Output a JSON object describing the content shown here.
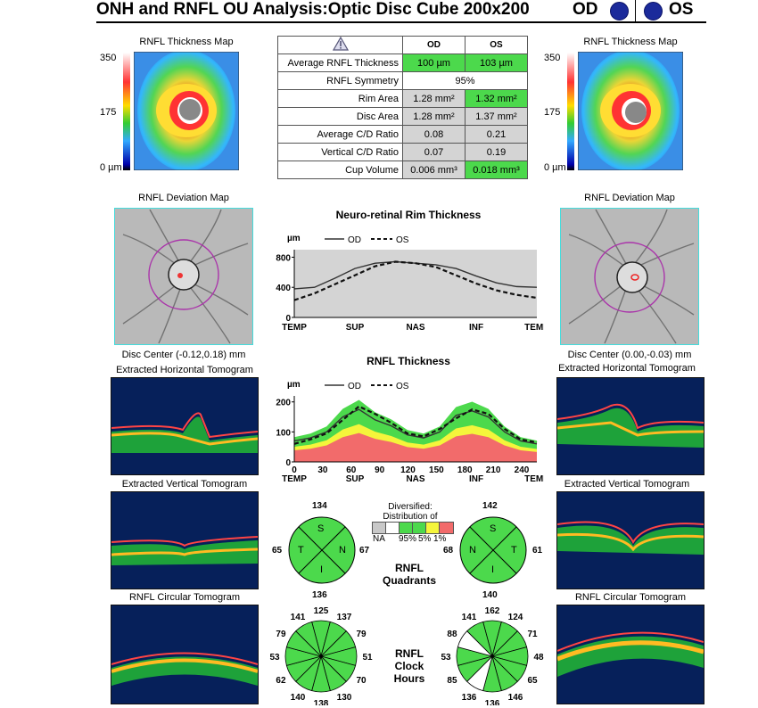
{
  "header": {
    "title": "ONH and RNFL OU Analysis:Optic Disc Cube 200x200",
    "od": "OD",
    "os": "OS"
  },
  "thickness_map": {
    "label": "RNFL Thickness Map",
    "scale_top": "350",
    "scale_mid": "175",
    "scale_bot": "0 µm"
  },
  "summary": {
    "col_od": "OD",
    "col_os": "OS",
    "rows": [
      {
        "label": "Average RNFL Thickness",
        "od": "100 µm",
        "os": "103 µm"
      },
      {
        "label": "RNFL Symmetry",
        "both": "95%"
      },
      {
        "label": "Rim Area",
        "od": "1.28 mm²",
        "os": "1.32 mm²"
      },
      {
        "label": "Disc Area",
        "od": "1.28 mm²",
        "os": "1.37 mm²"
      },
      {
        "label": "Average C/D Ratio",
        "od": "0.08",
        "os": "0.21"
      },
      {
        "label": "Vertical C/D Ratio",
        "od": "0.07",
        "os": "0.19"
      },
      {
        "label": "Cup Volume",
        "od": "0.006 mm³",
        "os": "0.018 mm³"
      }
    ]
  },
  "deviation": {
    "label": "RNFL Deviation Map",
    "od_center": "Disc Center  (-0.12,0.18) mm",
    "os_center": "Disc Center  (0.00,-0.03) mm"
  },
  "tomograms": {
    "horizontal": "Extracted Horizontal Tomogram",
    "vertical": "Extracted Vertical Tomogram",
    "circular": "RNFL Circular Tomogram"
  },
  "colors": {
    "normal_green": "#4cd94c",
    "borderline_yellow": "#f5f53b",
    "abnormal_red": "#f26b6b",
    "na_gray": "#c8c8c8"
  },
  "chart_data": [
    {
      "type": "line",
      "title": "Neuro-retinal Rim Thickness",
      "ylabel": "µm",
      "legend": [
        "OD",
        "OS"
      ],
      "x_tick_labels": [
        "TEMP",
        "SUP",
        "NAS",
        "INF",
        "TEMP"
      ],
      "y_ticks": [
        0,
        400,
        800
      ],
      "ylim": [
        0,
        900
      ],
      "series": [
        {
          "name": "OD",
          "values": [
            380,
            400,
            520,
            650,
            720,
            740,
            720,
            700,
            650,
            550,
            460,
            410,
            400
          ]
        },
        {
          "name": "OS",
          "values": [
            230,
            320,
            440,
            560,
            680,
            740,
            720,
            670,
            560,
            450,
            360,
            300,
            260
          ]
        }
      ]
    },
    {
      "type": "line",
      "title": "RNFL Thickness",
      "ylabel": "µm",
      "legend": [
        "OD",
        "OS"
      ],
      "x_ticks": [
        0,
        30,
        60,
        90,
        120,
        150,
        180,
        210,
        240
      ],
      "x_tick_labels": [
        "TEMP",
        "SUP",
        "NAS",
        "INF",
        "TEMP"
      ],
      "y_ticks": [
        0,
        100,
        200
      ],
      "ylim": [
        0,
        220
      ],
      "xlim": [
        0,
        256
      ],
      "series": [
        {
          "name": "OD",
          "values": [
            70,
            80,
            100,
            150,
            175,
            140,
            120,
            90,
            80,
            100,
            155,
            170,
            150,
            100,
            70,
            60
          ]
        },
        {
          "name": "OS",
          "values": [
            60,
            75,
            95,
            140,
            185,
            160,
            130,
            95,
            85,
            110,
            145,
            175,
            160,
            110,
            75,
            65
          ]
        }
      ]
    }
  ],
  "legend_normals": {
    "title1": "Diversified:",
    "title2": "Distribution of Normals",
    "na": "NA",
    "p95": "95%",
    "p5": "5%",
    "p1": "1%"
  },
  "quadrants": {
    "title1": "RNFL",
    "title2": "Quadrants",
    "od": {
      "top": "134",
      "left": "65",
      "right": "67",
      "bottom": "136",
      "s": "S",
      "t": "T",
      "n": "N",
      "i": "I"
    },
    "os": {
      "top": "142",
      "left": "68",
      "right": "61",
      "bottom": "140",
      "s": "S",
      "t": "T",
      "n": "N",
      "i": "I"
    }
  },
  "clock": {
    "title1": "RNFL",
    "title2": "Clock",
    "title3": "Hours",
    "od": [
      "125",
      "137",
      "79",
      "51",
      "70",
      "130",
      "138",
      "140",
      "62",
      "53",
      "79",
      "141"
    ],
    "os": [
      "162",
      "124",
      "71",
      "48",
      "65",
      "146",
      "136",
      "136",
      "85",
      "53",
      "88",
      "141"
    ]
  }
}
